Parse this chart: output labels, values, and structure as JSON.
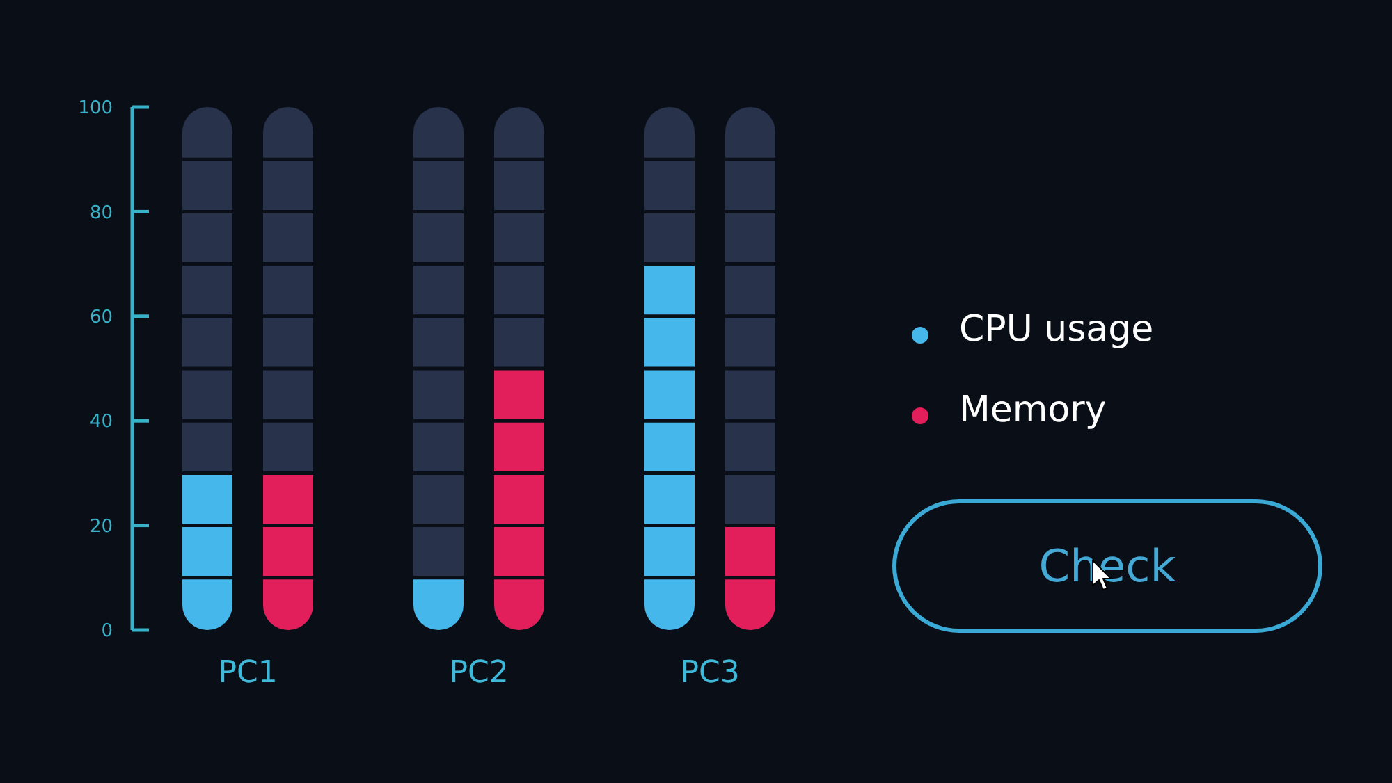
{
  "chart_data": {
    "type": "bar",
    "categories": [
      "PC1",
      "PC2",
      "PC3"
    ],
    "series": [
      {
        "name": "CPU usage",
        "color": "#45b7ea",
        "values": [
          30,
          10,
          70
        ]
      },
      {
        "name": "Memory",
        "color": "#e31f5b",
        "values": [
          30,
          50,
          20
        ]
      }
    ],
    "ylim": [
      0,
      100
    ],
    "yticks": [
      0,
      20,
      40,
      60,
      80,
      100
    ],
    "legend": "right",
    "annotations": [
      "Check"
    ]
  }
}
